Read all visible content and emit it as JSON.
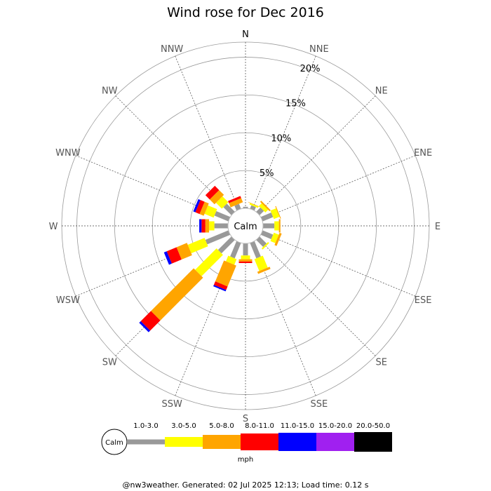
{
  "chart_data": {
    "type": "windrose",
    "title": "Wind rose for Dec 2016",
    "directions": [
      "N",
      "NNE",
      "NE",
      "ENE",
      "E",
      "ESE",
      "SE",
      "SSE",
      "S",
      "SSW",
      "SW",
      "WSW",
      "W",
      "WNW",
      "NW",
      "NNW"
    ],
    "radial_ticks": [
      "5%",
      "10%",
      "15%",
      "20%"
    ],
    "rmax_percent": 22,
    "calm_label": "Calm",
    "units": "mph",
    "speed_bins": [
      {
        "label": "1.0-3.0",
        "color": "#999999"
      },
      {
        "label": "3.0-5.0",
        "color": "#ffff00"
      },
      {
        "label": "5.0-8.0",
        "color": "#ffa500"
      },
      {
        "label": "8.0-11.0",
        "color": "#ff0000"
      },
      {
        "label": "11.0-15.0",
        "color": "#0000ff"
      },
      {
        "label": "15.0-20.0",
        "color": "#a020f0"
      },
      {
        "label": "20.0-50.0",
        "color": "#000000"
      }
    ],
    "cumulative_percent": {
      "N": [
        0.2,
        0.2,
        0.2,
        0.2,
        0.2,
        0.2,
        0.2
      ],
      "NNE": [
        0.5,
        0.7,
        0.75,
        0.75,
        0.75,
        0.75,
        0.75
      ],
      "NE": [
        0.8,
        1.3,
        1.5,
        1.5,
        1.5,
        1.5,
        1.5
      ],
      "ENE": [
        1.5,
        2.3,
        2.4,
        2.4,
        2.4,
        2.4,
        2.4
      ],
      "E": [
        1.5,
        2.1,
        2.3,
        2.3,
        2.3,
        2.3,
        2.3
      ],
      "ESE": [
        1.5,
        2.2,
        2.5,
        2.5,
        2.5,
        2.5,
        2.5
      ],
      "SE": [
        1.3,
        1.5,
        1.5,
        1.5,
        1.5,
        1.5,
        1.5
      ],
      "SSE": [
        2.2,
        3.9,
        4.2,
        4.2,
        4.2,
        4.2,
        4.2
      ],
      "S": [
        1.6,
        2.1,
        2.4,
        2.6,
        2.6,
        2.6,
        2.6
      ],
      "SSW": [
        2.2,
        3.0,
        6.0,
        6.5,
        6.7,
        6.7,
        6.7
      ],
      "SW": [
        2.5,
        6.5,
        14.5,
        16.4,
        16.7,
        16.7,
        16.7
      ],
      "WSW": [
        3.3,
        5.7,
        7.2,
        8.6,
        9.0,
        9.0,
        9.0
      ],
      "W": [
        1.8,
        2.5,
        3.0,
        3.5,
        3.8,
        3.8,
        3.8
      ],
      "WNW": [
        2.0,
        3.3,
        3.9,
        4.5,
        4.8,
        4.8,
        4.8
      ],
      "NW": [
        1.5,
        2.6,
        3.5,
        4.3,
        4.3,
        4.3,
        4.3
      ],
      "NNW": [
        0.7,
        0.7,
        1.3,
        1.6,
        1.6,
        1.6,
        1.6
      ]
    }
  },
  "footer": "@nw3weather. Generated: 02 Jul 2025 12:13; Load time: 0.12 s"
}
